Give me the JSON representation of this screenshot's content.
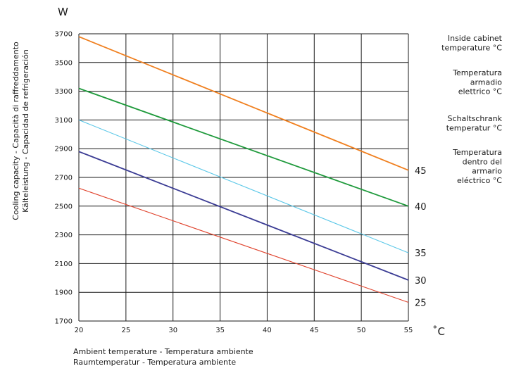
{
  "chart_data": {
    "type": "line",
    "y_unit": "W",
    "x_unit": "˚C",
    "xlim": [
      20,
      55
    ],
    "ylim": [
      1700,
      3700
    ],
    "x_ticks": [
      20,
      25,
      30,
      35,
      40,
      45,
      50,
      55
    ],
    "y_ticks": [
      1700,
      1900,
      2100,
      2300,
      2500,
      2700,
      2900,
      3100,
      3300,
      3500,
      3700
    ],
    "grid": true,
    "ylabel": [
      "Cooling capacity - Capacità di raffreddamento",
      "Kälteleistung - Capacidad de refrigeración"
    ],
    "xlabel": [
      "Ambient temperature - Temperatura ambiente",
      "Raumtemperatur - Temperatura ambiente"
    ],
    "legend_title": [
      [
        "Inside cabinet",
        "temperature °C"
      ],
      [
        "Temperatura",
        "armadio",
        "elettrico °C"
      ],
      [
        "Schaltschrank",
        "temperatur °C"
      ],
      [
        "Temperatura",
        "dentro del",
        "armario",
        "eléctrico °C"
      ]
    ],
    "series": [
      {
        "name": "45",
        "color": "#f07f1e",
        "x": [
          20,
          55
        ],
        "y": [
          3680,
          2750
        ]
      },
      {
        "name": "40",
        "color": "#1f9a3c",
        "x": [
          20,
          55
        ],
        "y": [
          3320,
          2500
        ]
      },
      {
        "name": "35",
        "color": "#5cc8e8",
        "x": [
          20,
          55
        ],
        "y": [
          3100,
          2175
        ]
      },
      {
        "name": "30",
        "color": "#3b3c94",
        "x": [
          20,
          55
        ],
        "y": [
          2880,
          1985
        ]
      },
      {
        "name": "25",
        "color": "#e0442e",
        "x": [
          20,
          55
        ],
        "y": [
          2625,
          1830
        ]
      }
    ]
  }
}
